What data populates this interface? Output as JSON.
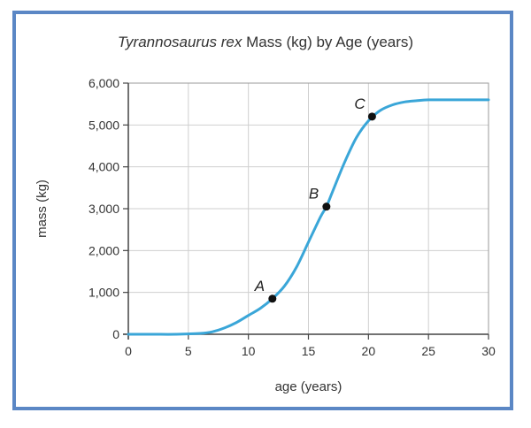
{
  "chart_data": {
    "type": "line",
    "title_italic": "Tyrannosaurus rex",
    "title_rest": " Mass (kg) by Age (years)",
    "xlabel": "age (years)",
    "ylabel": "mass (kg)",
    "xlim": [
      0,
      30
    ],
    "ylim": [
      0,
      6000
    ],
    "x_ticks": [
      0,
      5,
      10,
      15,
      20,
      25,
      30
    ],
    "x_tick_labels": [
      "0",
      "5",
      "10",
      "15",
      "20",
      "25",
      "30"
    ],
    "y_ticks": [
      0,
      1000,
      2000,
      3000,
      4000,
      5000,
      6000
    ],
    "y_tick_labels": [
      "0",
      "1,000",
      "2,000",
      "3,000",
      "4,000",
      "5,000",
      "6,000"
    ],
    "grid": true,
    "series": [
      {
        "color": "#3aa6d8",
        "x": [
          0,
          2,
          4,
          6,
          7,
          8,
          9,
          10,
          11,
          12,
          13,
          14,
          15,
          16,
          16.5,
          17,
          18,
          19,
          20,
          21,
          22,
          23,
          24,
          25,
          27,
          30
        ],
        "y": [
          0,
          0,
          0,
          20,
          60,
          150,
          280,
          450,
          620,
          850,
          1150,
          1600,
          2200,
          2800,
          3050,
          3400,
          4100,
          4700,
          5100,
          5350,
          5480,
          5550,
          5580,
          5600,
          5600,
          5600
        ]
      }
    ],
    "points": [
      {
        "label": "A",
        "x": 12,
        "y": 850
      },
      {
        "label": "B",
        "x": 16.5,
        "y": 3050
      },
      {
        "label": "C",
        "x": 20.3,
        "y": 5200
      }
    ]
  }
}
